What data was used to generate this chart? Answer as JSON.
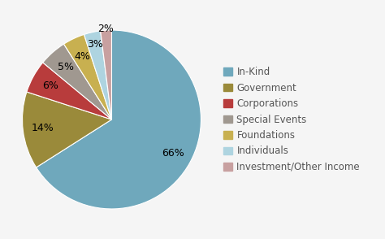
{
  "labels": [
    "In-Kind",
    "Government",
    "Corporations",
    "Special Events",
    "Foundations",
    "Individuals",
    "Investment/Other Income"
  ],
  "values": [
    66,
    14,
    6,
    5,
    4,
    3,
    2
  ],
  "colors": [
    "#6fa8bc",
    "#9a8a3a",
    "#b83c3c",
    "#a09890",
    "#c8b050",
    "#aed4e0",
    "#c8a0a0"
  ],
  "background_color": "#f5f5f5",
  "legend_fontsize": 8.5,
  "pct_fontsize": 9,
  "startangle": 90
}
